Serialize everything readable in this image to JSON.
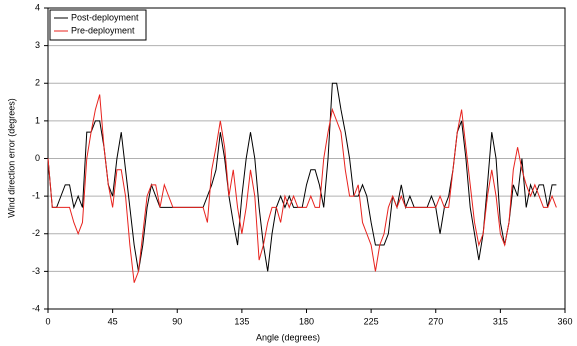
{
  "chart_data": {
    "type": "line",
    "x_label": "Angle (degrees)",
    "y_label": "Wind direction error (degrees)",
    "x": [
      0,
      3,
      6,
      9,
      12,
      15,
      18,
      21,
      24,
      27,
      30,
      33,
      36,
      39,
      42,
      45,
      48,
      51,
      54,
      57,
      60,
      63,
      66,
      69,
      72,
      75,
      78,
      81,
      84,
      87,
      90,
      93,
      96,
      99,
      102,
      105,
      108,
      111,
      114,
      117,
      120,
      123,
      126,
      129,
      132,
      135,
      138,
      141,
      144,
      147,
      150,
      153,
      156,
      159,
      162,
      165,
      168,
      171,
      174,
      177,
      180,
      183,
      186,
      189,
      192,
      195,
      198,
      201,
      204,
      207,
      210,
      213,
      216,
      219,
      222,
      225,
      228,
      231,
      234,
      237,
      240,
      243,
      246,
      249,
      252,
      255,
      258,
      261,
      264,
      267,
      270,
      273,
      276,
      279,
      282,
      285,
      288,
      291,
      294,
      297,
      300,
      303,
      306,
      309,
      312,
      315,
      318,
      321,
      324,
      327,
      330,
      333,
      336,
      339,
      342,
      345,
      348,
      351,
      354
    ],
    "series": [
      {
        "name": "Post-deployment",
        "color": "#000000",
        "values": [
          0,
          -1.3,
          -1.3,
          -1,
          -0.7,
          -0.7,
          -1.3,
          -1,
          -1.3,
          0.7,
          0.7,
          1,
          1,
          0.3,
          -0.7,
          -1,
          0,
          0.7,
          -0.3,
          -1.3,
          -2.3,
          -3,
          -2.3,
          -1.3,
          -0.7,
          -1,
          -1.3,
          -1.3,
          -1.3,
          -1.3,
          -1.3,
          -1.3,
          -1.3,
          -1.3,
          -1.3,
          -1.3,
          -1.3,
          -1,
          -0.7,
          -0.3,
          0.7,
          0,
          -1,
          -1.7,
          -2.3,
          -1,
          0,
          0.7,
          0,
          -1.3,
          -2.3,
          -3,
          -2,
          -1.3,
          -1,
          -1.3,
          -1,
          -1.3,
          -1.3,
          -1.3,
          -0.7,
          -0.3,
          -0.3,
          -0.7,
          -1.3,
          0,
          2,
          2,
          1.3,
          0.7,
          0,
          -1,
          -1,
          -0.7,
          -1,
          -1.7,
          -2.3,
          -2.3,
          -2.3,
          -2,
          -1,
          -1.3,
          -0.7,
          -1.3,
          -1,
          -1.3,
          -1.3,
          -1.3,
          -1.3,
          -1,
          -1.3,
          -2,
          -1.3,
          -1,
          -0.3,
          0.7,
          1,
          0,
          -1.3,
          -2,
          -2.7,
          -2,
          -0.7,
          0.7,
          0,
          -1.7,
          -2.3,
          -1.7,
          -0.7,
          -1,
          0,
          -1.3,
          -0.7,
          -1,
          -0.7,
          -0.7,
          -1.3,
          -0.7,
          -0.7
        ]
      },
      {
        "name": "Pre-deployment",
        "color": "#e8231e",
        "values": [
          0,
          -1.3,
          -1.3,
          -1.3,
          -1.3,
          -1.3,
          -1.7,
          -2,
          -1.7,
          0,
          0.7,
          1.3,
          1.7,
          0.3,
          -0.7,
          -1.3,
          -0.3,
          -0.3,
          -1,
          -2.3,
          -3.3,
          -3,
          -2,
          -1,
          -0.7,
          -0.7,
          -1.3,
          -0.7,
          -1,
          -1.3,
          -1.3,
          -1.3,
          -1.3,
          -1.3,
          -1.3,
          -1.3,
          -1.3,
          -1.7,
          -0.3,
          0.3,
          1,
          0.3,
          -1,
          -0.3,
          -1.3,
          -2,
          -1.3,
          -0.3,
          -1,
          -2.7,
          -2.3,
          -1.7,
          -1.3,
          -1.3,
          -1.7,
          -1,
          -1.3,
          -1,
          -1.3,
          -1.3,
          -1.3,
          -1,
          -1.3,
          -1.3,
          0,
          0.7,
          1.3,
          1,
          0.7,
          -0.3,
          -1,
          -1,
          -0.7,
          -1.7,
          -2,
          -2.3,
          -3,
          -2.3,
          -2,
          -1.3,
          -1,
          -1.3,
          -1,
          -1.3,
          -1.3,
          -1.3,
          -1.3,
          -1.3,
          -1.3,
          -1.3,
          -1.3,
          -1,
          -1.3,
          -1.3,
          -0.3,
          0.7,
          1.3,
          0.3,
          -0.7,
          -1.7,
          -2.3,
          -2,
          -1,
          -0.3,
          -1,
          -2,
          -2.3,
          -1.7,
          -0.3,
          0.3,
          -0.3,
          -0.7,
          -1,
          -0.7,
          -1,
          -1.3,
          -1.3,
          -1,
          -1.3
        ]
      }
    ],
    "xlim": [
      0,
      360
    ],
    "xticks": [
      0,
      45,
      90,
      135,
      180,
      225,
      270,
      315,
      360
    ],
    "ylim": [
      -4,
      4
    ],
    "yticks": [
      -4,
      -3,
      -2,
      -1,
      0,
      1,
      2,
      3,
      4
    ],
    "grid": true,
    "legend": "top-left"
  }
}
